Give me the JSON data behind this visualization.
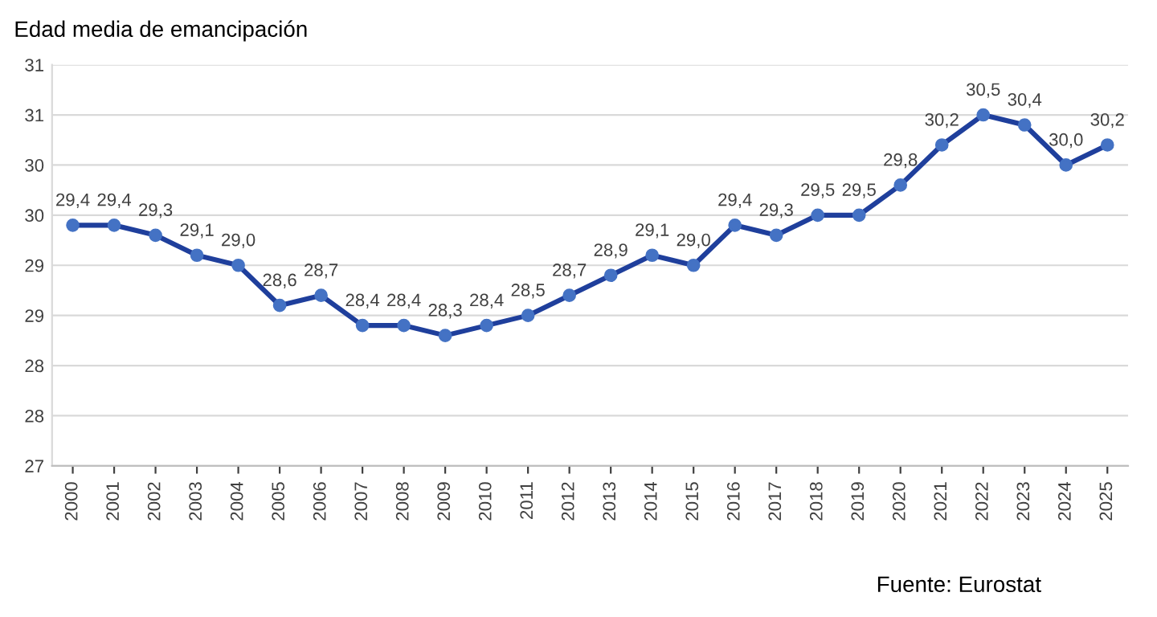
{
  "chart_data": {
    "type": "line",
    "title": "Edad media de emancipación",
    "categories": [
      "2000",
      "2001",
      "2002",
      "2003",
      "2004",
      "2005",
      "2006",
      "2007",
      "2008",
      "2009",
      "2010",
      "2011",
      "2012",
      "2013",
      "2014",
      "2015",
      "2016",
      "2017",
      "2018",
      "2019",
      "2020",
      "2021",
      "2022",
      "2023",
      "2024",
      "2025"
    ],
    "series": [
      {
        "color": "#1f3f9c",
        "values": [
          29.4,
          29.4,
          29.3,
          29.1,
          29.0,
          28.6,
          28.7,
          28.4,
          28.4,
          28.3,
          28.4,
          28.5,
          28.7,
          28.9,
          29.1,
          29.0,
          29.4,
          29.3,
          29.5,
          29.5,
          29.8,
          30.2,
          30.5,
          30.4,
          30.0,
          30.2
        ],
        "value_labels": [
          "29,4",
          "29,4",
          "29,3",
          "29,1",
          "29,0",
          "28,6",
          "28,7",
          "28,4",
          "28,4",
          "28,3",
          "28,4",
          "28,5",
          "28,7",
          "28,9",
          "29,1",
          "29,0",
          "29,4",
          "29,3",
          "29,5",
          "29,5",
          "29,8",
          "30,2",
          "30,5",
          "30,4",
          "30,0",
          "30,2"
        ]
      }
    ],
    "ylim": [
      27,
      31
    ],
    "yticks": [
      27,
      {
        "value": 27.5,
        "label": "28"
      },
      28,
      {
        "value": 28.5,
        "label": "29"
      },
      29,
      {
        "value": 29.5,
        "label": "30"
      },
      30,
      {
        "value": 30.5,
        "label": "31"
      },
      31
    ],
    "grid": "y",
    "marker": "circle",
    "line_style": "solid",
    "annotations": [
      "Fuente: Eurostat"
    ]
  }
}
